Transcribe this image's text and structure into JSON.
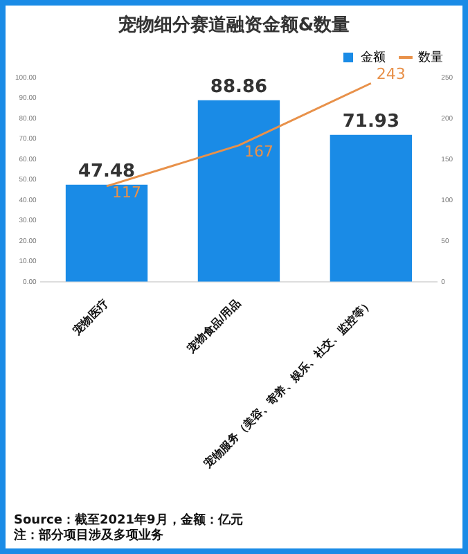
{
  "chart_data": {
    "type": "bar",
    "title": "宠物细分赛道融资金额&数量",
    "categories": [
      "宠物医疗",
      "宠物食品/用品",
      "宠物服务（美容、寄养、娱乐、社交、监控等）"
    ],
    "series": [
      {
        "name": "金额",
        "color": "#1a8be6",
        "values": [
          47.48,
          88.86,
          71.93
        ]
      },
      {
        "name": "数量",
        "type": "line",
        "axis": "y2",
        "color": "#e8914a",
        "values": [
          117,
          167,
          243
        ]
      }
    ],
    "ylim": [
      0,
      100
    ],
    "yticks": [
      {
        "value": 0,
        "label": "0.00"
      },
      {
        "value": 10,
        "label": "10.00"
      },
      {
        "value": 20,
        "label": "20.00"
      },
      {
        "value": 30,
        "label": "30.00"
      },
      {
        "value": 40,
        "label": "40.00"
      },
      {
        "value": 50,
        "label": "50.00"
      },
      {
        "value": 60,
        "label": "60.00"
      },
      {
        "value": 70,
        "label": "70.00"
      },
      {
        "value": 80,
        "label": "80.00"
      },
      {
        "value": 90,
        "label": "90.00"
      },
      {
        "value": 100,
        "label": "100.00"
      }
    ],
    "y2lim": [
      0,
      250
    ],
    "y2ticks": [
      0,
      50,
      100,
      150,
      200,
      250
    ],
    "data_labels": true,
    "grid": false,
    "legend": "top right",
    "marker": "none",
    "line_style": "solid",
    "annotations": [
      "Source：截至2021年9月，金额：亿元",
      "注：部分项目涉及多项业务"
    ]
  }
}
